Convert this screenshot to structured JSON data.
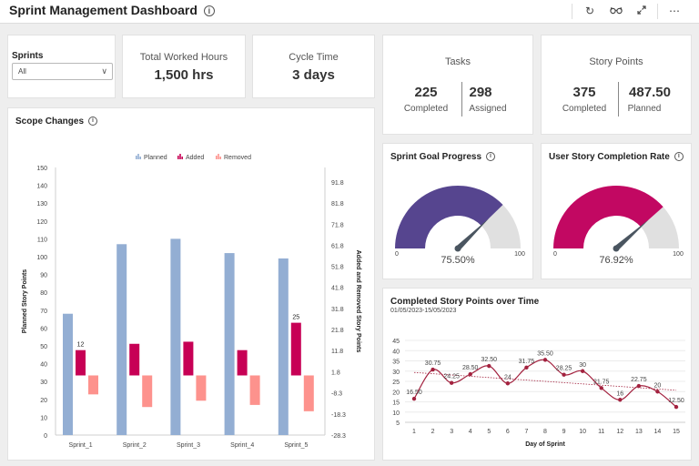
{
  "header": {
    "title": "Sprint Management Dashboard",
    "icons": [
      "info-icon",
      "refresh-icon",
      "glasses-icon",
      "expand-icon",
      "more-icon"
    ]
  },
  "sprints_filter": {
    "label": "Sprints",
    "value": "All"
  },
  "total_worked_hours": {
    "title": "Total Worked Hours",
    "value": "1,500 hrs"
  },
  "cycle_time": {
    "title": "Cycle Time",
    "value": "3 days"
  },
  "tasks": {
    "title": "Tasks",
    "completed_value": "225",
    "completed_label": "Completed",
    "assigned_value": "298",
    "assigned_label": "Assigned"
  },
  "story_points": {
    "title": "Story Points",
    "completed_value": "375",
    "completed_label": "Completed",
    "planned_value": "487.50",
    "planned_label": "Planned"
  },
  "scope_changes": {
    "title": "Scope Changes",
    "chart_data": {
      "type": "bar",
      "categories": [
        "Sprint_1",
        "Sprint_2",
        "Sprint_3",
        "Sprint_4",
        "Sprint_5"
      ],
      "series": [
        {
          "name": "Planned",
          "axis": "left",
          "values": [
            68,
            107,
            110,
            102,
            99
          ],
          "color": "#93aed3"
        },
        {
          "name": "Added",
          "axis": "right",
          "values": [
            12,
            15,
            16,
            12,
            25
          ],
          "color": "#c70055"
        },
        {
          "name": "Removed",
          "axis": "right",
          "values": [
            -9,
            -15,
            -12,
            -14,
            -17
          ],
          "color": "#fd928d"
        }
      ],
      "data_labels": [
        {
          "series": "Added",
          "index": 0,
          "text": "12"
        },
        {
          "series": "Added",
          "index": 4,
          "text": "25"
        }
      ],
      "legend_position": "top-center",
      "ylabel": "Planned Story Points",
      "y2label": "Added and Removed Story Points",
      "ylim": [
        0,
        150
      ],
      "y2lim": [
        -28.3,
        98.7
      ],
      "yticks": [
        "0",
        "10",
        "20",
        "30",
        "40",
        "50",
        "60",
        "70",
        "80",
        "90",
        "100",
        "110",
        "120",
        "130",
        "140",
        "150"
      ],
      "y2ticks": [
        "-28.3",
        "-18.3",
        "-8.3",
        "1.8",
        "11.8",
        "21.8",
        "31.8",
        "41.8",
        "51.8",
        "61.8",
        "71.8",
        "81.8",
        "91.8"
      ]
    }
  },
  "sprint_goal": {
    "title": "Sprint Goal Progress",
    "chart_data": {
      "type": "gauge",
      "value": 75.5,
      "value_label": "75.50%",
      "min_label": "0",
      "max_label": "100",
      "color": "#56458f",
      "track_color": "#e0e0e0"
    }
  },
  "user_story": {
    "title": "User Story Completion Rate",
    "chart_data": {
      "type": "gauge",
      "value": 76.92,
      "value_label": "76.92%",
      "min_label": "0",
      "max_label": "100",
      "color": "#c20862",
      "track_color": "#e0e0e0"
    }
  },
  "completed_over_time": {
    "title": "Completed Story Points over Time",
    "subtitle": "01/05/2023-15/05/2023",
    "chart_data": {
      "type": "line",
      "x": [
        1,
        2,
        3,
        4,
        5,
        6,
        7,
        8,
        9,
        10,
        11,
        12,
        13,
        14,
        15
      ],
      "values": [
        16.5,
        30.75,
        24.25,
        28.5,
        32.5,
        24,
        31.75,
        35.5,
        28.25,
        30,
        21.75,
        16,
        22.75,
        20,
        12.5
      ],
      "labels": [
        "16.50",
        "30.75",
        "24.25",
        "28.50",
        "32.50",
        "24",
        "31.75",
        "35.50",
        "28.25",
        "30",
        "21.75",
        "16",
        "22.75",
        "20",
        "12.50"
      ],
      "trendline": true,
      "xlabel": "Day of Sprint",
      "ylim": [
        5,
        45
      ],
      "yticks": [
        "5",
        "10",
        "15",
        "20",
        "25",
        "30",
        "35",
        "40",
        "45"
      ],
      "color": "#a3223f"
    }
  }
}
